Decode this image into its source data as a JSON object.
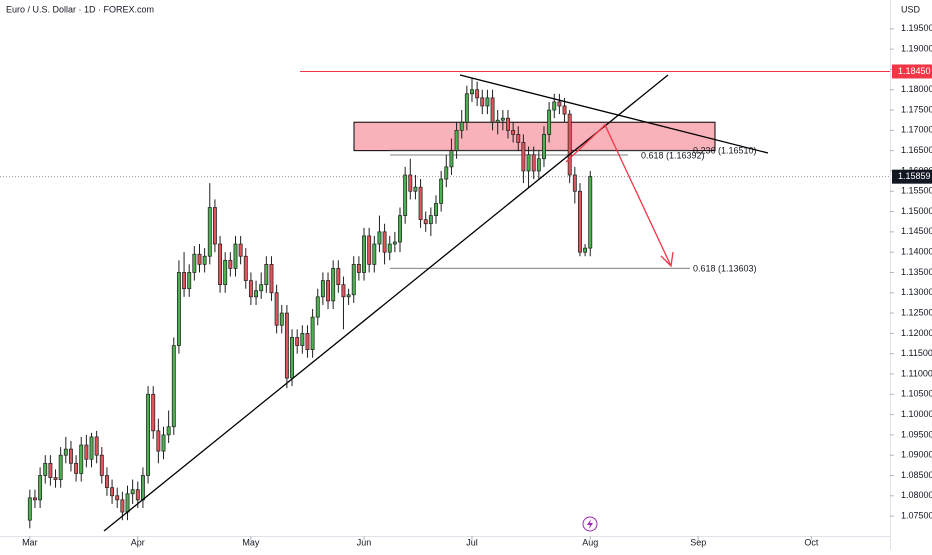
{
  "chart_data": {
    "type": "candlestick",
    "title": "Euro / U.S. Dollar · 1D · FOREX.com",
    "currency": "USD",
    "up_color": "#4caf50",
    "down_color": "#e0545b",
    "x": [
      0,
      1,
      2,
      3,
      4,
      5,
      6,
      7,
      8,
      9,
      10,
      11,
      12,
      13,
      14,
      15,
      16,
      17,
      18,
      19,
      20,
      21,
      22,
      23,
      24,
      25,
      26,
      27,
      28,
      29,
      30,
      31,
      32,
      33,
      34,
      35,
      36,
      37,
      38,
      39,
      40,
      41,
      42,
      43,
      44,
      45,
      46,
      47,
      48,
      49,
      50,
      51,
      52,
      53,
      54,
      55,
      56,
      57,
      58,
      59,
      60,
      61,
      62,
      63,
      64,
      65,
      66,
      67,
      68,
      69,
      70,
      71,
      72,
      73,
      74,
      75,
      76,
      77,
      78,
      79,
      80,
      81,
      82,
      83,
      84,
      85,
      86,
      87,
      88,
      89,
      90,
      91,
      92,
      93,
      94,
      95,
      96,
      97,
      98,
      99,
      100,
      101,
      102,
      103,
      104,
      105,
      106,
      107,
      108,
      109
    ],
    "open": [
      1.074,
      1.0795,
      1.079,
      1.085,
      1.088,
      1.0845,
      1.084,
      1.09,
      1.0915,
      1.088,
      1.0855,
      1.0925,
      1.089,
      1.0945,
      1.09,
      1.085,
      1.082,
      1.08,
      1.079,
      1.076,
      1.0805,
      1.0815,
      1.079,
      1.085,
      1.105,
      1.096,
      1.091,
      1.095,
      1.097,
      1.117,
      1.135,
      1.131,
      1.135,
      1.1395,
      1.137,
      1.139,
      1.151,
      1.142,
      1.132,
      1.138,
      1.136,
      1.142,
      1.139,
      1.133,
      1.129,
      1.1305,
      1.132,
      1.137,
      1.13,
      1.122,
      1.125,
      1.109,
      1.119,
      1.117,
      1.12,
      1.116,
      1.124,
      1.129,
      1.133,
      1.128,
      1.136,
      1.132,
      1.129,
      1.1295,
      1.137,
      1.135,
      1.144,
      1.137,
      1.142,
      1.145,
      1.14,
      1.142,
      1.1425,
      1.149,
      1.159,
      1.155,
      1.156,
      1.148,
      1.147,
      1.149,
      1.152,
      1.158,
      1.161,
      1.165,
      1.17,
      1.172,
      1.179,
      1.18,
      1.178,
      1.176,
      1.178,
      1.172,
      1.1725,
      1.173,
      1.17,
      1.169,
      1.167,
      1.16,
      1.164,
      1.16,
      1.163,
      1.169,
      1.175,
      1.177,
      1.176,
      1.174,
      1.159,
      1.155,
      1.14,
      1.141
    ],
    "high": [
      1.0815,
      1.0815,
      1.087,
      1.09,
      1.09,
      1.0865,
      1.092,
      1.0945,
      1.0935,
      1.09,
      1.0945,
      1.095,
      1.0955,
      1.096,
      1.092,
      1.087,
      1.084,
      1.082,
      1.081,
      1.0825,
      1.084,
      1.0835,
      1.087,
      1.107,
      1.107,
      1.099,
      1.097,
      1.101,
      1.119,
      1.138,
      1.14,
      1.137,
      1.1415,
      1.142,
      1.141,
      1.157,
      1.153,
      1.144,
      1.14,
      1.14,
      1.144,
      1.144,
      1.141,
      1.135,
      1.133,
      1.135,
      1.139,
      1.139,
      1.132,
      1.127,
      1.127,
      1.121,
      1.121,
      1.122,
      1.122,
      1.126,
      1.131,
      1.135,
      1.135,
      1.138,
      1.138,
      1.134,
      1.131,
      1.139,
      1.139,
      1.146,
      1.146,
      1.144,
      1.149,
      1.147,
      1.144,
      1.145,
      1.151,
      1.161,
      1.163,
      1.159,
      1.158,
      1.15,
      1.151,
      1.154,
      1.16,
      1.164,
      1.168,
      1.172,
      1.175,
      1.181,
      1.183,
      1.182,
      1.18,
      1.18,
      1.18,
      1.175,
      1.175,
      1.175,
      1.172,
      1.171,
      1.169,
      1.166,
      1.166,
      1.165,
      1.171,
      1.177,
      1.179,
      1.179,
      1.178,
      1.175,
      1.161,
      1.157,
      1.142,
      1.16
    ],
    "low": [
      1.072,
      1.077,
      1.077,
      1.083,
      1.0825,
      1.082,
      1.082,
      1.088,
      1.086,
      1.0835,
      1.0835,
      1.087,
      1.087,
      1.088,
      1.083,
      1.08,
      1.078,
      1.077,
      1.074,
      1.074,
      1.078,
      1.077,
      1.077,
      1.083,
      1.094,
      1.088,
      1.089,
      1.093,
      1.095,
      1.115,
      1.129,
      1.129,
      1.133,
      1.135,
      1.135,
      1.137,
      1.14,
      1.13,
      1.13,
      1.134,
      1.134,
      1.137,
      1.131,
      1.127,
      1.127,
      1.1285,
      1.13,
      1.128,
      1.12,
      1.12,
      1.1065,
      1.107,
      1.115,
      1.115,
      1.114,
      1.114,
      1.122,
      1.127,
      1.126,
      1.126,
      1.13,
      1.121,
      1.127,
      1.1275,
      1.133,
      1.133,
      1.135,
      1.135,
      1.14,
      1.137,
      1.138,
      1.14,
      1.14,
      1.147,
      1.153,
      1.153,
      1.146,
      1.145,
      1.144,
      1.147,
      1.15,
      1.156,
      1.159,
      1.163,
      1.168,
      1.17,
      1.177,
      1.176,
      1.174,
      1.174,
      1.17,
      1.169,
      1.17,
      1.168,
      1.167,
      1.165,
      1.157,
      1.156,
      1.158,
      1.158,
      1.161,
      1.167,
      1.173,
      1.174,
      1.172,
      1.157,
      1.152,
      1.139,
      1.139,
      1.139
    ],
    "close": [
      1.0795,
      1.079,
      1.085,
      1.088,
      1.0845,
      1.084,
      1.09,
      1.0915,
      1.088,
      1.0855,
      1.0925,
      1.089,
      1.0945,
      1.09,
      1.085,
      1.082,
      1.08,
      1.079,
      1.076,
      1.0805,
      1.0815,
      1.079,
      1.085,
      1.105,
      1.096,
      1.091,
      1.095,
      1.097,
      1.117,
      1.135,
      1.131,
      1.135,
      1.1395,
      1.137,
      1.139,
      1.151,
      1.142,
      1.132,
      1.138,
      1.136,
      1.142,
      1.139,
      1.133,
      1.129,
      1.1305,
      1.132,
      1.137,
      1.13,
      1.122,
      1.125,
      1.109,
      1.119,
      1.117,
      1.12,
      1.116,
      1.124,
      1.129,
      1.133,
      1.128,
      1.136,
      1.132,
      1.129,
      1.1295,
      1.137,
      1.135,
      1.144,
      1.137,
      1.142,
      1.145,
      1.14,
      1.142,
      1.1425,
      1.149,
      1.159,
      1.155,
      1.156,
      1.148,
      1.147,
      1.149,
      1.152,
      1.158,
      1.161,
      1.165,
      1.17,
      1.172,
      1.179,
      1.18,
      1.178,
      1.176,
      1.178,
      1.172,
      1.1725,
      1.173,
      1.17,
      1.169,
      1.167,
      1.16,
      1.164,
      1.16,
      1.163,
      1.169,
      1.175,
      1.177,
      1.176,
      1.174,
      1.159,
      1.155,
      1.14,
      1.141,
      1.1586
    ],
    "xlim": [
      -5.8,
      167.3
    ],
    "xticks": [
      {
        "value": 0,
        "label": "Mar"
      },
      {
        "value": 21,
        "label": "Apr"
      },
      {
        "value": 43,
        "label": "May"
      },
      {
        "value": 65,
        "label": "Jun"
      },
      {
        "value": 86,
        "label": "Jul"
      },
      {
        "value": 109,
        "label": "Aug"
      },
      {
        "value": 130,
        "label": "Sep"
      },
      {
        "value": 152,
        "label": "Oct"
      }
    ],
    "ylim": [
      1.0701,
      1.2021
    ],
    "yticks": [
      {
        "value": 1.075,
        "label": "1.07500"
      },
      {
        "value": 1.08,
        "label": "1.08000"
      },
      {
        "value": 1.085,
        "label": "1.08500"
      },
      {
        "value": 1.09,
        "label": "1.09000"
      },
      {
        "value": 1.095,
        "label": "1.09500"
      },
      {
        "value": 1.1,
        "label": "1.10000"
      },
      {
        "value": 1.105,
        "label": "1.10500"
      },
      {
        "value": 1.11,
        "label": "1.11000"
      },
      {
        "value": 1.115,
        "label": "1.11500"
      },
      {
        "value": 1.12,
        "label": "1.12000"
      },
      {
        "value": 1.125,
        "label": "1.12500"
      },
      {
        "value": 1.13,
        "label": "1.13000"
      },
      {
        "value": 1.135,
        "label": "1.13500"
      },
      {
        "value": 1.14,
        "label": "1.14000"
      },
      {
        "value": 1.145,
        "label": "1.14500"
      },
      {
        "value": 1.15,
        "label": "1.15000"
      },
      {
        "value": 1.155,
        "label": "1.15500"
      },
      {
        "value": 1.16,
        "label": "1.16000"
      },
      {
        "value": 1.165,
        "label": "1.16500"
      },
      {
        "value": 1.17,
        "label": "1.17000"
      },
      {
        "value": 1.175,
        "label": "1.17500"
      },
      {
        "value": 1.18,
        "label": "1.18000"
      },
      {
        "value": 1.185,
        "label": "1.18500"
      },
      {
        "value": 1.19,
        "label": "1.19000"
      },
      {
        "value": 1.195,
        "label": "1.19500"
      }
    ],
    "resistance_line": {
      "value": 1.1845,
      "label": "1.18450",
      "color": "#f23645"
    },
    "last_price": {
      "value": 1.15859,
      "label": "1.15859"
    },
    "fib_levels": [
      {
        "value": 1.1651,
        "label": "0.236 (1.16510)"
      },
      {
        "value": 1.16392,
        "label": "0.618 (1.16392)"
      },
      {
        "value": 1.13603,
        "label": "0.618 (1.13603)"
      }
    ],
    "zone": {
      "top": 1.172,
      "bottom": 1.165,
      "color": "#f8a5ad"
    }
  }
}
